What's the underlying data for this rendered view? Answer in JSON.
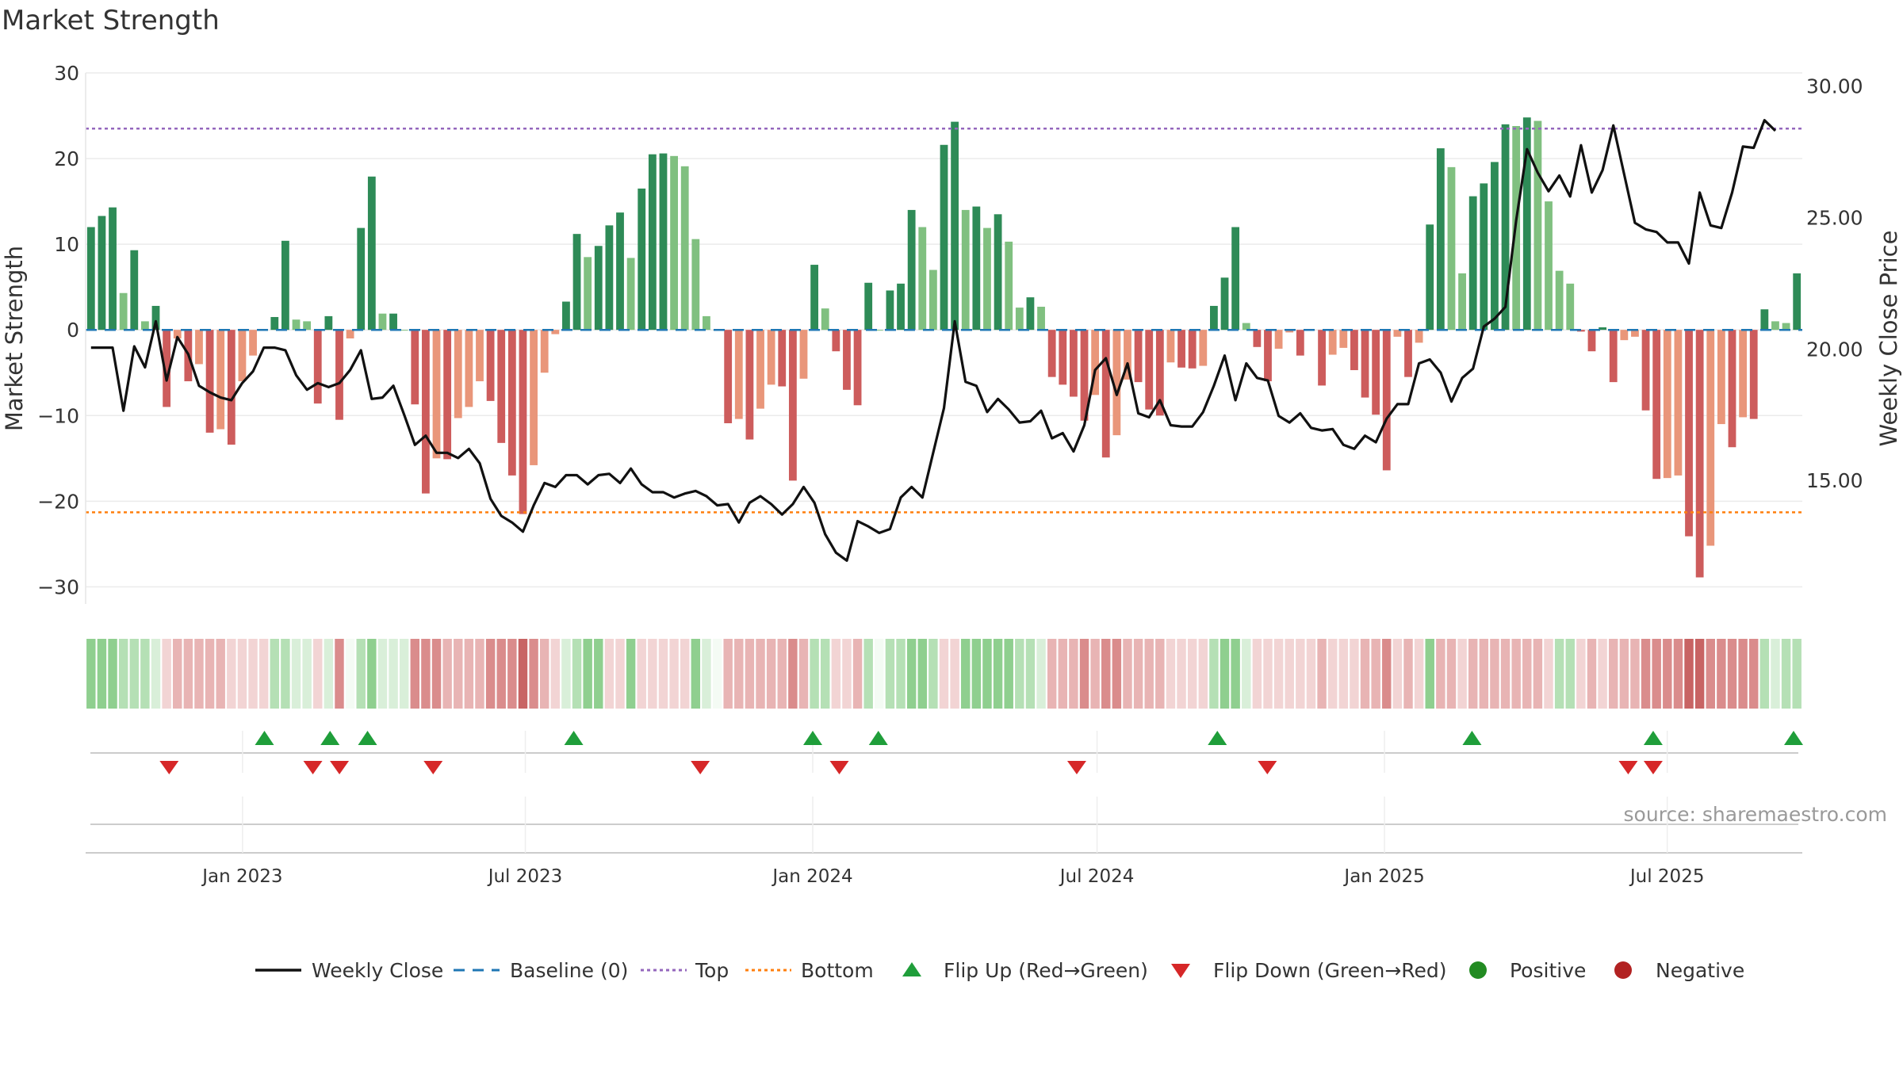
{
  "chart_data": {
    "type": "bar",
    "title": "Market Strength",
    "source": "source: sharemaestro.com",
    "y_left": {
      "label": "Market Strength",
      "ylim": [
        -32,
        30
      ],
      "ticks": [
        30,
        20,
        10,
        0,
        -10,
        -20,
        -30
      ],
      "tick_labels": [
        "30",
        "20",
        "10",
        "0",
        "−10",
        "−20",
        "−30"
      ]
    },
    "y_right": {
      "label": "Weekly Close Price",
      "ylim": [
        10.3,
        30.5
      ],
      "ticks": [
        30,
        25,
        20,
        15
      ],
      "tick_labels": [
        "30.00",
        "25.00",
        "20.00",
        "15.00"
      ]
    },
    "x_axis": {
      "start": "2022-09-26",
      "end": "2025-09-22",
      "ticks": [
        "2023-01-01",
        "2023-07-01",
        "2024-01-01",
        "2024-07-01",
        "2025-01-01",
        "2025-07-01"
      ],
      "tick_labels": [
        "Jan 2023",
        "Jul 2023",
        "Jan 2024",
        "Jul 2024",
        "Jan 2025",
        "Jul 2025"
      ]
    },
    "top_line": 23.5,
    "bottom_line": -21.3,
    "strength": [
      12,
      13.3,
      14.3,
      4.3,
      9.3,
      1,
      2.8,
      -9,
      -1,
      -6,
      -4,
      -12,
      -11.6,
      -13.4,
      -6,
      -3,
      0,
      1.5,
      10.4,
      1.2,
      1,
      -8.6,
      1.6,
      -10.5,
      -1,
      11.9,
      17.9,
      1.9,
      1.9,
      0,
      -8.7,
      -19.1,
      -15,
      -15.1,
      -10.3,
      -9,
      -6,
      -8.3,
      -13.2,
      -17,
      -21.5,
      -15.8,
      -5,
      -0.5,
      3.3,
      11.2,
      8.5,
      9.8,
      12.2,
      13.7,
      8.4,
      16.5,
      20.5,
      20.6,
      20.3,
      19.1,
      10.6,
      1.6,
      0,
      -10.9,
      -10.4,
      -12.8,
      -9.2,
      -6.4,
      -6.6,
      -17.6,
      -5.7,
      7.6,
      2.5,
      -2.5,
      -7,
      -8.8,
      5.5,
      0,
      4.6,
      5.4,
      14,
      12,
      7,
      21.6,
      24.3,
      14,
      14.4,
      11.9,
      13.5,
      10.3,
      2.6,
      3.8,
      2.7,
      -5.5,
      -6.4,
      -7.8,
      -10.6,
      -7.6,
      -14.9,
      -12.3,
      -5.8,
      -6.1,
      -9.3,
      -10,
      -3.8,
      -4.4,
      -4.5,
      -4.2,
      2.8,
      6.1,
      12,
      0.8,
      -2,
      -6,
      -2.2,
      -0.3,
      -3,
      -0.1,
      -6.5,
      -2.9,
      -2.1,
      -4.7,
      -7.9,
      -9.9,
      -16.4,
      -0.8,
      -5.5,
      -1.5,
      12.3,
      21.2,
      19,
      6.6,
      15.6,
      17.1,
      19.6,
      24,
      23.8,
      24.8,
      24.4,
      15,
      6.9,
      5.4,
      -0.2,
      -2.5,
      0.3,
      -6.1,
      -1.2,
      -0.8,
      -9.4,
      -17.4,
      -17.3,
      -17,
      -24.1,
      -28.9,
      -25.2,
      -11,
      -13.7,
      -10.2,
      -10.4,
      2.4,
      1,
      0.8,
      6.6
    ],
    "weekly_close": [
      20.05,
      20.05,
      20.05,
      17.65,
      20.1,
      19.3,
      21.05,
      18.8,
      20.45,
      19.8,
      18.6,
      18.35,
      18.15,
      18.05,
      18.7,
      19.15,
      20.05,
      20.05,
      19.95,
      19,
      18.45,
      18.7,
      18.55,
      18.7,
      19.2,
      19.95,
      18.1,
      18.15,
      18.6,
      17.5,
      16.35,
      16.7,
      16.05,
      16.05,
      15.85,
      16.2,
      15.65,
      14.3,
      13.65,
      13.4,
      13.05,
      14.05,
      14.9,
      14.75,
      15.2,
      15.2,
      14.85,
      15.2,
      15.25,
      14.9,
      15.45,
      14.85,
      14.55,
      14.55,
      14.35,
      14.5,
      14.6,
      14.4,
      14.05,
      14.1,
      13.4,
      14.15,
      14.4,
      14.1,
      13.7,
      14.1,
      14.75,
      14.15,
      12.95,
      12.25,
      11.95,
      13.45,
      13.25,
      13,
      13.15,
      14.35,
      14.75,
      14.35,
      16.05,
      17.75,
      21.05,
      18.75,
      18.6,
      17.6,
      18.1,
      17.7,
      17.2,
      17.25,
      17.65,
      16.6,
      16.8,
      16.1,
      17.1,
      19.2,
      19.65,
      18.25,
      19.45,
      17.55,
      17.4,
      18.05,
      17.1,
      17.05,
      17.05,
      17.6,
      18.6,
      19.75,
      18.05,
      19.45,
      18.9,
      18.8,
      17.45,
      17.2,
      17.55,
      17,
      16.9,
      16.95,
      16.35,
      16.2,
      16.7,
      16.45,
      17.35,
      17.9,
      17.9,
      19.45,
      19.6,
      19.1,
      18,
      18.9,
      19.25,
      20.85,
      21.15,
      21.6,
      24.9,
      27.6,
      26.7,
      26,
      26.6,
      25.8,
      27.75,
      25.95,
      26.8,
      28.5,
      26.65,
      24.8,
      24.55,
      24.45,
      24.05,
      24.05,
      23.25,
      25.95,
      24.7,
      24.6,
      25.95,
      27.7,
      27.65,
      28.7,
      28.3
    ],
    "color_strip": [
      3,
      3,
      3,
      2,
      2,
      2,
      1,
      4,
      5,
      5,
      5,
      5,
      5,
      4,
      4,
      4,
      4,
      2,
      2,
      1,
      1,
      4,
      1,
      6,
      0,
      2,
      3,
      1,
      1,
      1,
      6,
      6,
      6,
      5,
      5,
      5,
      5,
      6,
      6,
      6,
      7,
      6,
      5,
      4,
      1,
      2,
      3,
      3,
      4,
      4,
      3,
      4,
      4,
      4,
      4,
      4,
      3,
      1,
      0,
      5,
      5,
      5,
      5,
      5,
      5,
      6,
      5,
      2,
      2,
      4,
      4,
      5,
      2,
      0,
      2,
      2,
      3,
      3,
      2,
      4,
      4,
      3,
      3,
      3,
      3,
      3,
      2,
      2,
      1,
      5,
      5,
      5,
      6,
      5,
      6,
      6,
      5,
      5,
      5,
      5,
      4,
      4,
      4,
      4,
      2,
      3,
      3,
      1,
      4,
      4,
      4,
      4,
      4,
      4,
      5,
      4,
      4,
      4,
      5,
      5,
      6,
      4,
      5,
      4,
      3,
      5,
      5,
      4,
      5,
      5,
      5,
      5,
      5,
      5,
      5,
      4,
      2,
      2,
      4,
      5,
      4,
      5,
      5,
      5,
      6,
      6,
      6,
      6,
      7,
      7,
      6,
      6,
      6,
      6,
      6,
      2,
      1,
      2,
      2
    ],
    "flip_up_dates": [
      "2023-01-15",
      "2023-02-26",
      "2023-03-22",
      "2023-08-01",
      "2024-01-01",
      "2024-02-12",
      "2024-09-16",
      "2025-02-26",
      "2025-06-22",
      "2025-10-01"
    ],
    "flip_down_dates": [
      "2022-11-15",
      "2023-02-15",
      "2023-03-04",
      "2023-05-03",
      "2023-10-21",
      "2024-01-18",
      "2024-06-18",
      "2024-10-18",
      "2025-06-06",
      "2025-06-22"
    ],
    "legend": [
      "Weekly Close",
      "Baseline (0)",
      "Top",
      "Bottom",
      "Flip Up (Red→Green)",
      "Flip Down (Green→Red)",
      "Positive",
      "Negative"
    ],
    "colors": {
      "bar_pos_strong": "#2e8b57",
      "bar_pos_weak": "#80c080",
      "bar_neg_strong": "#cd5c5c",
      "bar_neg_weak": "#e9967a",
      "line": "#111111",
      "baseline": "#1f77b4",
      "top": "#9467bd",
      "bottom": "#ff7f0e",
      "flip_up": "#1f9e3a",
      "flip_down": "#d62728",
      "positive": "#228b22",
      "negative": "#b22222",
      "strip": [
        "#f4fbf4",
        "#d9efd9",
        "#b5e0b5",
        "#8fcf8f",
        "#f2d4d4",
        "#e8b4b4",
        "#da8c8c",
        "#c86464"
      ]
    }
  }
}
